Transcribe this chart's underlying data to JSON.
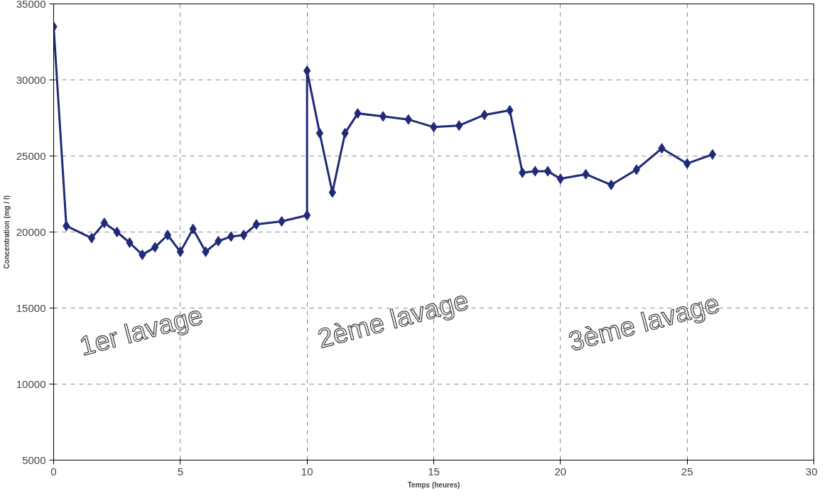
{
  "chart_data": {
    "type": "line",
    "xlabel": "Temps (heures)",
    "ylabel": "Concentration (mg / l)",
    "annotations": [
      "1er lavage",
      "2ème lavage",
      "3ème lavage"
    ],
    "series": [
      {
        "color": "#1f2a78",
        "x": [
          0,
          0.5,
          1.5,
          2,
          2.5,
          3,
          3.5,
          4,
          4.5,
          5,
          5.5,
          6,
          6.5,
          7,
          7.5,
          8,
          9,
          10,
          10,
          10.5,
          11,
          11.5,
          12,
          13,
          14,
          15,
          16,
          17,
          18,
          18.5,
          19,
          19.5,
          20,
          21,
          22,
          23,
          24,
          25,
          26
        ],
        "values": [
          33500,
          20400,
          19600,
          20600,
          20000,
          19300,
          18500,
          19000,
          19800,
          18700,
          20200,
          18700,
          19400,
          19700,
          19800,
          20500,
          20700,
          21100,
          30600,
          26500,
          22600,
          26500,
          27800,
          27600,
          27400,
          26900,
          27000,
          27700,
          28000,
          23900,
          24000,
          24000,
          23500,
          23800,
          23100,
          24100,
          25500,
          24500,
          25100
        ]
      }
    ],
    "xlim": [
      0,
      30
    ],
    "ylim": [
      5000,
      35000
    ],
    "xticks": [
      0,
      5,
      10,
      15,
      20,
      25,
      30
    ],
    "yticks": [
      5000,
      10000,
      15000,
      20000,
      25000,
      30000,
      35000
    ],
    "grid": true,
    "marker": "diamond",
    "line_style": "solid"
  }
}
